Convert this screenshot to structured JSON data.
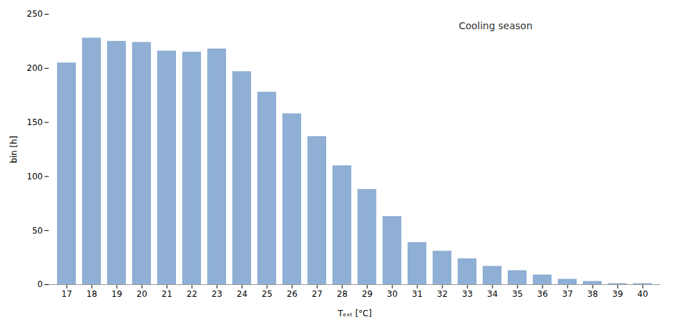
{
  "chart_data": {
    "type": "bar",
    "categories": [
      17,
      18,
      19,
      20,
      21,
      22,
      23,
      24,
      25,
      26,
      27,
      28,
      29,
      30,
      31,
      32,
      33,
      34,
      35,
      36,
      37,
      38,
      39,
      40
    ],
    "values": [
      205,
      228,
      225,
      224,
      216,
      215,
      218,
      197,
      178,
      158,
      137,
      110,
      88,
      63,
      39,
      31,
      24,
      17,
      13,
      9,
      5,
      3,
      1,
      1
    ],
    "color": "#8fafd4",
    "xlabel": "Tₑₓₜ [°C]",
    "ylabel": "bin [h]",
    "annotation": "Cooling season",
    "ylim": [
      0,
      250
    ],
    "yticks": [
      0,
      50,
      100,
      150,
      200,
      250
    ],
    "grid": false
  }
}
